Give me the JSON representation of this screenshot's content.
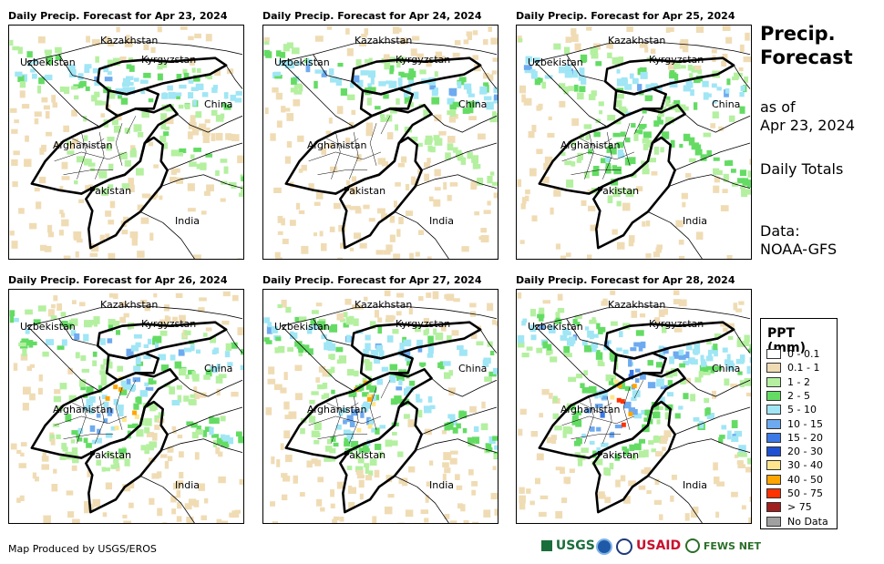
{
  "panels": [
    {
      "title": "Daily Precip. Forecast for Apr 23, 2024",
      "intensity": 1
    },
    {
      "title": "Daily Precip. Forecast for Apr 24, 2024",
      "intensity": 0
    },
    {
      "title": "Daily Precip. Forecast for Apr 25, 2024",
      "intensity": 2
    },
    {
      "title": "Daily Precip. Forecast for Apr 26, 2024",
      "intensity": 3
    },
    {
      "title": "Daily Precip. Forecast for Apr 27, 2024",
      "intensity": 3
    },
    {
      "title": "Daily Precip. Forecast for Apr 28, 2024",
      "intensity": 4
    }
  ],
  "map_labels": {
    "kazakhstan": "Kazakhstan",
    "uzbekistan": "Uzbekistan",
    "kyrgyzstan": "Kyrgyzstan",
    "china": "China",
    "afghanistan": "Afghanistan",
    "pakistan": "Pakistan",
    "india": "India"
  },
  "sidebar": {
    "title": "Precip. Forecast",
    "as_of_label": "as of",
    "as_of_date": "Apr 23, 2024",
    "totals": "Daily Totals",
    "data_label": "Data:",
    "data_source": "NOAA-GFS"
  },
  "legend": {
    "title": "PPT (mm)",
    "items": [
      {
        "label": "0 - 0.1",
        "color": "#ffffff"
      },
      {
        "label": "0.1 - 1",
        "color": "#f0dcb4"
      },
      {
        "label": "1 - 2",
        "color": "#b4f0a0"
      },
      {
        "label": "2 - 5",
        "color": "#64dc64"
      },
      {
        "label": "5 - 10",
        "color": "#a0e6f5"
      },
      {
        "label": "10 - 15",
        "color": "#6eaaf0"
      },
      {
        "label": "15 - 20",
        "color": "#3c78e6"
      },
      {
        "label": "20 - 30",
        "color": "#1e50d2"
      },
      {
        "label": "30 - 40",
        "color": "#ffe68c"
      },
      {
        "label": "40 - 50",
        "color": "#ffa500"
      },
      {
        "label": "50 - 75",
        "color": "#ff3200"
      },
      {
        "label": "> 75",
        "color": "#a01e1e"
      },
      {
        "label": "No Data",
        "color": "#a0a0a0"
      }
    ]
  },
  "credit": "Map Produced by USGS/EROS",
  "logos": {
    "usgs": "USGS",
    "usaid": "USAID",
    "fews": "FEWS NET"
  }
}
